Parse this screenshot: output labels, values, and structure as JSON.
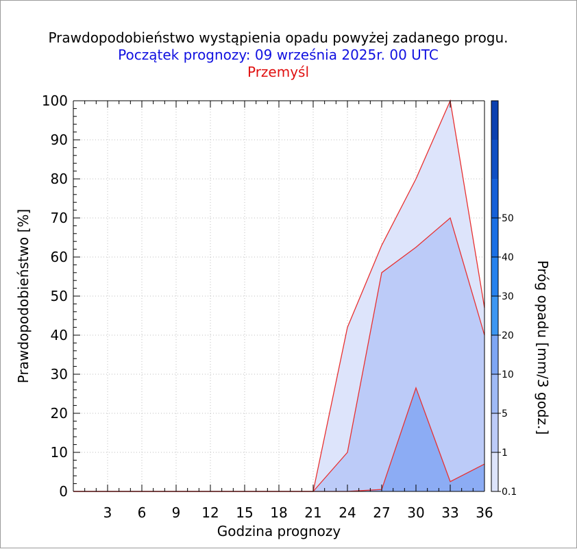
{
  "title": "Prawdopodobieństwo wystąpienia opadu powyżej zadanego progu.",
  "subtitle": "Początek prognozy: 09 września 2025r. 00 UTC",
  "location": "Przemyśl",
  "chart_data": {
    "type": "area",
    "xlabel": "Godzina prognozy",
    "ylabel": "Prawdopodobieństwo [%]",
    "colorbar_label": "Próg opadu [mm/3 godz.]",
    "x": [
      0,
      3,
      6,
      9,
      12,
      15,
      18,
      21,
      24,
      27,
      30,
      33,
      36
    ],
    "xlim": [
      0,
      36
    ],
    "ylim": [
      0,
      100
    ],
    "x_ticks": [
      "3",
      "6",
      "9",
      "12",
      "15",
      "18",
      "21",
      "24",
      "27",
      "30",
      "33",
      "36"
    ],
    "y_ticks": [
      "0",
      "10",
      "20",
      "30",
      "40",
      "50",
      "60",
      "70",
      "80",
      "90",
      "100"
    ],
    "grid": true,
    "outline_color": "#e83030",
    "series": [
      {
        "name": "0.1",
        "color": "#dde4fb",
        "values": [
          0,
          0,
          0,
          0,
          0,
          0,
          0,
          0,
          42,
          63,
          80,
          100,
          47
        ]
      },
      {
        "name": "1",
        "color": "#bccbf8",
        "values": [
          0,
          0,
          0,
          0,
          0,
          0,
          0,
          0,
          10,
          56,
          62.5,
          70,
          40
        ]
      },
      {
        "name": "5",
        "color": "#8cacf4",
        "values": [
          0,
          0,
          0,
          0,
          0,
          0,
          0,
          0,
          0,
          0.5,
          26.5,
          2.5,
          7
        ]
      }
    ],
    "colorbar": {
      "labels": [
        "0.1",
        "1",
        "5",
        "10",
        "20",
        "30",
        "40",
        "50"
      ],
      "colors": [
        "#dde4fb",
        "#bccbf8",
        "#9fbaf6",
        "#7ea6f4",
        "#3c96f2",
        "#2682ee",
        "#1a6fe4",
        "#1560d8",
        "#0f4fc4",
        "#0b40b0"
      ]
    }
  }
}
